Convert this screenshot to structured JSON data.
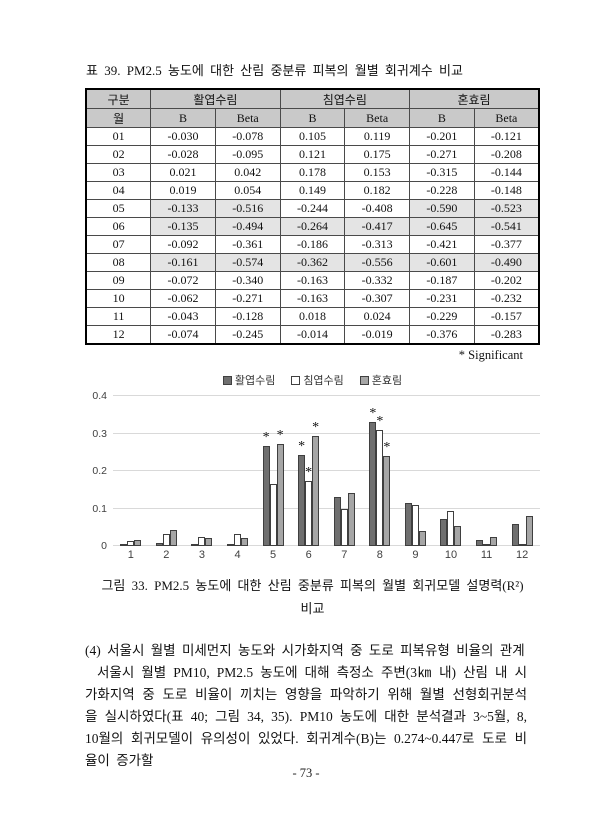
{
  "table": {
    "title": "표 39. PM2.5 농도에 대한 산림 중분류 피복의 월별 회귀계수 비교",
    "header": {
      "col_group": "구분",
      "col_month": "월",
      "groups": [
        "활엽수림",
        "침엽수림",
        "혼효림"
      ],
      "sub": [
        "B",
        "Beta"
      ]
    },
    "rows": [
      {
        "month": "01",
        "values": [
          "-0.030",
          "-0.078",
          "0.105",
          "0.119",
          "-0.201",
          "-0.121"
        ],
        "shaded": [
          false,
          false,
          false,
          false,
          false,
          false
        ]
      },
      {
        "month": "02",
        "values": [
          "-0.028",
          "-0.095",
          "0.121",
          "0.175",
          "-0.271",
          "-0.208"
        ],
        "shaded": [
          false,
          false,
          false,
          false,
          false,
          false
        ]
      },
      {
        "month": "03",
        "values": [
          "0.021",
          "0.042",
          "0.178",
          "0.153",
          "-0.315",
          "-0.144"
        ],
        "shaded": [
          false,
          false,
          false,
          false,
          false,
          false
        ]
      },
      {
        "month": "04",
        "values": [
          "0.019",
          "0.054",
          "0.149",
          "0.182",
          "-0.228",
          "-0.148"
        ],
        "shaded": [
          false,
          false,
          false,
          false,
          false,
          false
        ]
      },
      {
        "month": "05",
        "values": [
          "-0.133",
          "-0.516",
          "-0.244",
          "-0.408",
          "-0.590",
          "-0.523"
        ],
        "shaded": [
          true,
          true,
          false,
          false,
          true,
          true
        ]
      },
      {
        "month": "06",
        "values": [
          "-0.135",
          "-0.494",
          "-0.264",
          "-0.417",
          "-0.645",
          "-0.541"
        ],
        "shaded": [
          true,
          true,
          true,
          true,
          true,
          true
        ]
      },
      {
        "month": "07",
        "values": [
          "-0.092",
          "-0.361",
          "-0.186",
          "-0.313",
          "-0.421",
          "-0.377"
        ],
        "shaded": [
          false,
          false,
          false,
          false,
          false,
          false
        ]
      },
      {
        "month": "08",
        "values": [
          "-0.161",
          "-0.574",
          "-0.362",
          "-0.556",
          "-0.601",
          "-0.490"
        ],
        "shaded": [
          true,
          true,
          true,
          true,
          true,
          true
        ]
      },
      {
        "month": "09",
        "values": [
          "-0.072",
          "-0.340",
          "-0.163",
          "-0.332",
          "-0.187",
          "-0.202"
        ],
        "shaded": [
          false,
          false,
          false,
          false,
          false,
          false
        ]
      },
      {
        "month": "10",
        "values": [
          "-0.062",
          "-0.271",
          "-0.163",
          "-0.307",
          "-0.231",
          "-0.232"
        ],
        "shaded": [
          false,
          false,
          false,
          false,
          false,
          false
        ]
      },
      {
        "month": "11",
        "values": [
          "-0.043",
          "-0.128",
          "0.018",
          "0.024",
          "-0.229",
          "-0.157"
        ],
        "shaded": [
          false,
          false,
          false,
          false,
          false,
          false
        ]
      },
      {
        "month": "12",
        "values": [
          "-0.074",
          "-0.245",
          "-0.014",
          "-0.019",
          "-0.376",
          "-0.283"
        ],
        "shaded": [
          false,
          false,
          false,
          false,
          false,
          false
        ]
      }
    ]
  },
  "significant_note": "* Significant",
  "chart_data": {
    "type": "bar",
    "title": "",
    "xlabel": "",
    "ylabel": "",
    "categories": [
      1,
      2,
      3,
      4,
      5,
      6,
      7,
      8,
      9,
      10,
      11,
      12
    ],
    "series": [
      {
        "name": "활엽수림",
        "color": "#6f6f6f",
        "values": [
          0.006,
          0.009,
          0.002,
          0.003,
          0.266,
          0.244,
          0.13,
          0.33,
          0.116,
          0.073,
          0.016,
          0.06
        ],
        "significant_months": [
          5,
          6,
          8
        ]
      },
      {
        "name": "침엽수림",
        "color": "#ffffff",
        "values": [
          0.014,
          0.031,
          0.023,
          0.033,
          0.166,
          0.174,
          0.098,
          0.309,
          0.11,
          0.094,
          0.001,
          0.0
        ],
        "significant_months": [
          6,
          8
        ]
      },
      {
        "name": "혼효림",
        "color": "#a6a6a6",
        "values": [
          0.015,
          0.043,
          0.021,
          0.022,
          0.273,
          0.293,
          0.142,
          0.24,
          0.041,
          0.054,
          0.025,
          0.08
        ],
        "significant_months": [
          5,
          6,
          8
        ]
      }
    ],
    "ylim": [
      0,
      0.4
    ],
    "yticks": [
      "0",
      "0.1",
      "0.2",
      "0.3",
      "0.4"
    ],
    "grid": true,
    "legend_position": "top"
  },
  "figure": {
    "caption_line1": "그림 33. PM2.5 농도에 대한 산림 중분류 피복의 월별 회귀모델 설명력(R²)",
    "caption_line2": "비교"
  },
  "body": {
    "heading": "(4) 서울시 월별 미세먼지 농도와 시가화지역 중 도로 피복유형 비율의 관계",
    "paragraph": "서울시 월별 PM10, PM2.5 농도에 대해 측정소 주변(3㎞ 내) 산림 내 시가화지역 중 도로 비율이 끼치는 영향을 파악하기 위해 월별 선형회귀분석을 실시하였다(표 40; 그림 34, 35). PM10 농도에 대한 분석결과 3~5월, 8, 10월의 회귀모델이 유의성이 있었다. 회귀계수(B)는 0.274~0.447로 도로 비율이 증가할"
  },
  "page": {
    "number": "- 73 -"
  }
}
